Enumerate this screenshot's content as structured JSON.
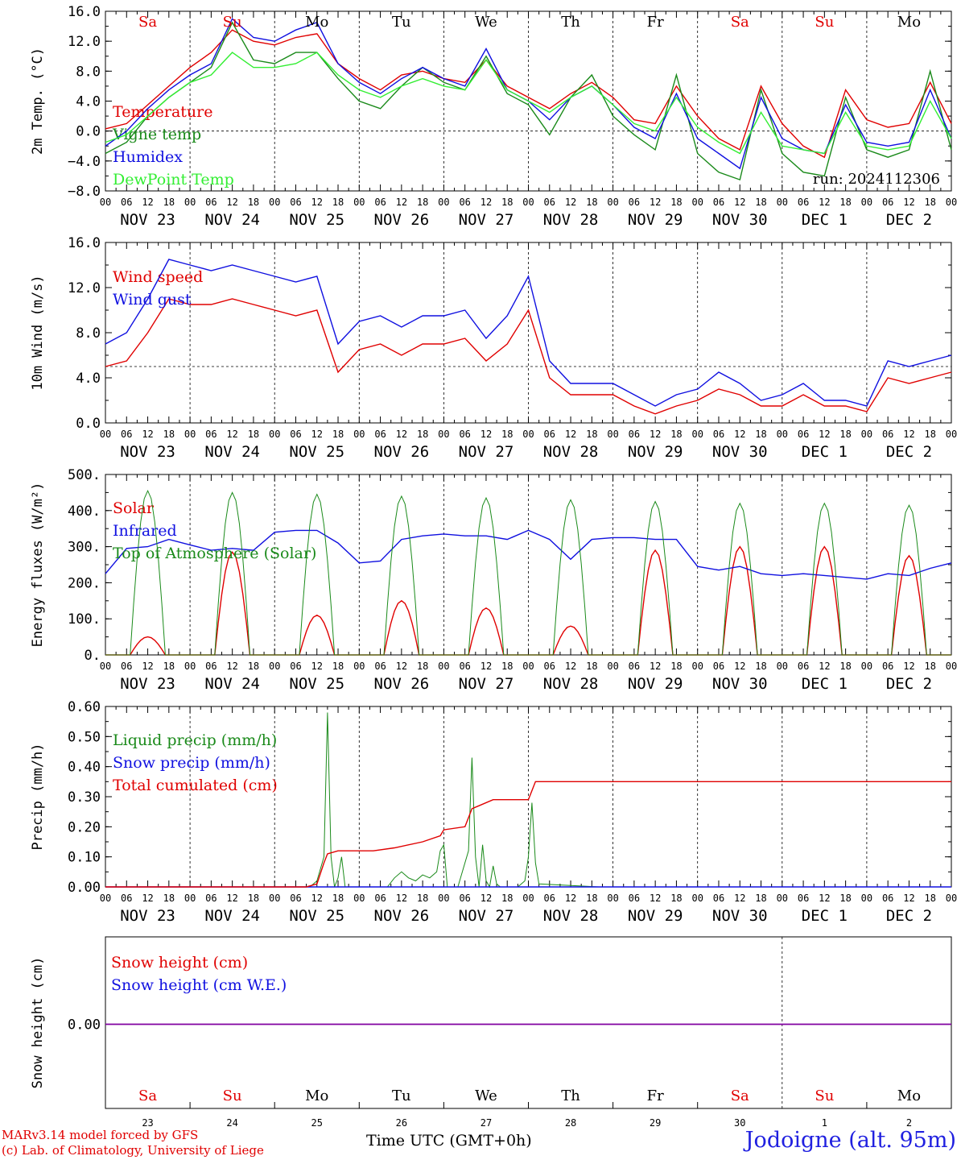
{
  "run_label": "run: 2024112306",
  "footer": {
    "model": "MARv3.14 model forced by GFS",
    "credit": "(c) Lab. of Climatology, University of Liege",
    "time_axis": "Time UTC (GMT+0h)",
    "station": "Jodoigne (alt. 95m)"
  },
  "days": [
    {
      "abbr": "Sa",
      "weekend": true,
      "date": "NOV 23",
      "num": "23"
    },
    {
      "abbr": "Su",
      "weekend": true,
      "date": "NOV 24",
      "num": "24"
    },
    {
      "abbr": "Mo",
      "weekend": false,
      "date": "NOV 25",
      "num": "25"
    },
    {
      "abbr": "Tu",
      "weekend": false,
      "date": "NOV 26",
      "num": "26"
    },
    {
      "abbr": "We",
      "weekend": false,
      "date": "NOV 27",
      "num": "27"
    },
    {
      "abbr": "Th",
      "weekend": false,
      "date": "NOV 28",
      "num": "28"
    },
    {
      "abbr": "Fr",
      "weekend": false,
      "date": "NOV 29",
      "num": "29"
    },
    {
      "abbr": "Sa",
      "weekend": true,
      "date": "NOV 30",
      "num": "30"
    },
    {
      "abbr": "Su",
      "weekend": true,
      "date": "DEC  1",
      "num": "1"
    },
    {
      "abbr": "Mo",
      "weekend": false,
      "date": "DEC  2",
      "num": "2"
    }
  ],
  "hour_ticks": [
    "00",
    "06",
    "12",
    "18"
  ],
  "colors": {
    "red": "#e00000",
    "green": "#1a8a1a",
    "blue": "#1010e0",
    "lightgreen": "#33ee33",
    "purple": "#8000a0",
    "dashed": "#000000"
  },
  "chart_data": [
    {
      "id": "temp",
      "type": "line",
      "ylabel": "2m Temp. (°C)",
      "ylim": [
        -8,
        16
      ],
      "yticks": [
        "16.0",
        "12.0",
        "8.0",
        "4.0",
        "0.0",
        "−4.0",
        "−8.0"
      ],
      "ytick_values": [
        16,
        12,
        8,
        4,
        0,
        -4,
        -8
      ],
      "ref_line": 0,
      "x_hours": [
        0,
        6,
        12,
        18,
        24,
        30,
        36,
        42,
        48,
        54,
        60,
        66,
        72,
        78,
        84,
        90,
        96,
        102,
        108,
        114,
        120,
        126,
        132,
        138,
        144,
        150,
        156,
        162,
        168,
        174,
        180,
        186,
        192,
        198,
        204,
        210,
        216,
        222,
        228,
        234,
        240
      ],
      "series": [
        {
          "name": "Temperature",
          "color": "red",
          "values": [
            0.3,
            1.0,
            3.5,
            6.0,
            8.5,
            10.5,
            13.5,
            12.0,
            11.5,
            12.5,
            13.0,
            9.0,
            7.0,
            5.5,
            7.5,
            8.0,
            7.0,
            6.5,
            9.5,
            6.0,
            4.5,
            3.0,
            5.0,
            6.5,
            4.5,
            1.5,
            1.0,
            6.0,
            2.0,
            -1.0,
            -2.5,
            6.0,
            1.0,
            -2.0,
            -3.5,
            5.5,
            1.5,
            0.5,
            1.0,
            6.5,
            1.0
          ]
        },
        {
          "name": "Vigne temp",
          "color": "green",
          "values": [
            -3.0,
            -1.5,
            2.0,
            4.5,
            6.5,
            8.5,
            14.5,
            9.5,
            9.0,
            10.5,
            10.5,
            7.0,
            4.0,
            3.0,
            6.0,
            8.5,
            6.5,
            5.5,
            10.0,
            5.0,
            3.5,
            -0.5,
            4.5,
            7.5,
            2.0,
            -0.5,
            -2.5,
            7.5,
            -3.0,
            -5.5,
            -6.5,
            5.5,
            -3.0,
            -5.5,
            -6.0,
            4.5,
            -2.5,
            -3.5,
            -2.5,
            8.0,
            -2.5
          ]
        },
        {
          "name": "Humidex",
          "color": "blue",
          "values": [
            -2.0,
            0.0,
            3.0,
            5.5,
            7.5,
            9.0,
            15.0,
            12.5,
            12.0,
            13.5,
            14.5,
            9.0,
            6.5,
            5.0,
            7.0,
            8.5,
            7.0,
            6.0,
            11.0,
            5.5,
            4.0,
            1.5,
            4.5,
            6.0,
            3.5,
            0.5,
            -1.0,
            5.0,
            -1.0,
            -3.0,
            -5.0,
            4.5,
            -1.0,
            -2.5,
            -3.0,
            3.5,
            -1.5,
            -2.0,
            -1.5,
            5.5,
            -1.0
          ]
        },
        {
          "name": "DewPoint Temp",
          "color": "lightgreen",
          "values": [
            -1.5,
            -0.5,
            2.0,
            4.5,
            6.5,
            7.5,
            10.5,
            8.5,
            8.5,
            9.0,
            10.5,
            7.5,
            5.5,
            4.5,
            6.0,
            7.0,
            6.0,
            5.5,
            9.5,
            5.5,
            4.0,
            2.5,
            4.5,
            6.0,
            3.5,
            1.0,
            0.0,
            4.5,
            0.5,
            -1.5,
            -3.0,
            2.5,
            -2.0,
            -2.5,
            -3.0,
            2.5,
            -2.0,
            -2.5,
            -2.0,
            4.0,
            -1.0
          ]
        }
      ]
    },
    {
      "id": "wind",
      "type": "line",
      "ylabel": "10m Wind (m/s)",
      "ylim": [
        0,
        16
      ],
      "yticks": [
        "16.0",
        "12.0",
        "8.0",
        "4.0",
        "0.0"
      ],
      "ytick_values": [
        16,
        12,
        8,
        4,
        0
      ],
      "ref_line": 5,
      "x_hours": [
        0,
        6,
        12,
        18,
        24,
        30,
        36,
        42,
        48,
        54,
        60,
        66,
        72,
        78,
        84,
        90,
        96,
        102,
        108,
        114,
        120,
        126,
        132,
        138,
        144,
        150,
        156,
        162,
        168,
        174,
        180,
        186,
        192,
        198,
        204,
        210,
        216,
        222,
        228,
        234,
        240
      ],
      "series": [
        {
          "name": "Wind speed",
          "color": "red",
          "values": [
            5.0,
            5.5,
            8.0,
            11.0,
            10.5,
            10.5,
            11.0,
            10.5,
            10.0,
            9.5,
            10.0,
            4.5,
            6.5,
            7.0,
            6.0,
            7.0,
            7.0,
            7.5,
            5.5,
            7.0,
            10.0,
            4.0,
            2.5,
            2.5,
            2.5,
            1.5,
            0.8,
            1.5,
            2.0,
            3.0,
            2.5,
            1.5,
            1.5,
            2.5,
            1.5,
            1.5,
            1.0,
            4.0,
            3.5,
            4.0,
            4.5
          ]
        },
        {
          "name": "Wind gust",
          "color": "blue",
          "values": [
            7.0,
            8.0,
            11.0,
            14.5,
            14.0,
            13.5,
            14.0,
            13.5,
            13.0,
            12.5,
            13.0,
            7.0,
            9.0,
            9.5,
            8.5,
            9.5,
            9.5,
            10.0,
            7.5,
            9.5,
            13.0,
            5.5,
            3.5,
            3.5,
            3.5,
            2.5,
            1.5,
            2.5,
            3.0,
            4.5,
            3.5,
            2.0,
            2.5,
            3.5,
            2.0,
            2.0,
            1.5,
            5.5,
            5.0,
            5.5,
            6.0
          ]
        }
      ]
    },
    {
      "id": "energy",
      "type": "line",
      "ylabel": "Energy fluxes (W/m²)",
      "ylim": [
        0,
        500
      ],
      "yticks": [
        "500.",
        "400.",
        "300.",
        "200.",
        "100.",
        "0."
      ],
      "ytick_values": [
        500,
        400,
        300,
        200,
        100,
        0
      ],
      "series": [
        {
          "name": "Solar",
          "color": "red",
          "peaks": [
            50,
            285,
            110,
            150,
            130,
            80,
            290,
            300,
            300,
            275
          ]
        },
        {
          "name": "Infrared",
          "color": "blue",
          "x_hours": [
            0,
            6,
            12,
            18,
            24,
            30,
            36,
            42,
            48,
            54,
            60,
            66,
            72,
            78,
            84,
            90,
            96,
            102,
            108,
            114,
            120,
            126,
            132,
            138,
            144,
            150,
            156,
            162,
            168,
            174,
            180,
            186,
            192,
            198,
            204,
            210,
            216,
            222,
            228,
            234,
            240
          ],
          "values": [
            225,
            295,
            300,
            320,
            305,
            290,
            295,
            290,
            340,
            345,
            345,
            310,
            255,
            260,
            320,
            330,
            335,
            330,
            330,
            320,
            345,
            320,
            265,
            320,
            325,
            325,
            320,
            320,
            245,
            235,
            245,
            225,
            220,
            225,
            220,
            215,
            210,
            225,
            220,
            240,
            255
          ]
        },
        {
          "name": "Top of Atmosphere (Solar)",
          "color": "green",
          "peaks": [
            455,
            450,
            445,
            440,
            435,
            430,
            425,
            420,
            420,
            415
          ]
        }
      ]
    },
    {
      "id": "precip",
      "type": "line",
      "ylabel": "Precip (mm/h)",
      "ylim": [
        0,
        0.6
      ],
      "yticks": [
        "0.60",
        "0.50",
        "0.40",
        "0.30",
        "0.20",
        "0.10",
        "0.00"
      ],
      "ytick_values": [
        0.6,
        0.5,
        0.4,
        0.3,
        0.2,
        0.1,
        0.0
      ],
      "series": [
        {
          "name": "Liquid precip (mm/h)",
          "color": "green",
          "points": [
            [
              0,
              0
            ],
            [
              58,
              0
            ],
            [
              60,
              0.02
            ],
            [
              62,
              0.1
            ],
            [
              63,
              0.58
            ],
            [
              64,
              0.1
            ],
            [
              65,
              0
            ],
            [
              66,
              0.03
            ],
            [
              67,
              0.1
            ],
            [
              68,
              0.0
            ],
            [
              80,
              0
            ],
            [
              82,
              0.03
            ],
            [
              84,
              0.05
            ],
            [
              86,
              0.03
            ],
            [
              88,
              0.02
            ],
            [
              90,
              0.04
            ],
            [
              92,
              0.03
            ],
            [
              94,
              0.05
            ],
            [
              95,
              0.12
            ],
            [
              96,
              0.14
            ],
            [
              97,
              0.0
            ],
            [
              100,
              0
            ],
            [
              103,
              0.12
            ],
            [
              104,
              0.43
            ],
            [
              105,
              0.1
            ],
            [
              106,
              0.0
            ],
            [
              107,
              0.14
            ],
            [
              108,
              0.02
            ],
            [
              109,
              0
            ],
            [
              110,
              0.07
            ],
            [
              111,
              0.01
            ],
            [
              112,
              0
            ],
            [
              117,
              0
            ],
            [
              119,
              0.02
            ],
            [
              120,
              0.1
            ],
            [
              121,
              0.28
            ],
            [
              122,
              0.08
            ],
            [
              123,
              0.01
            ],
            [
              140,
              0.0
            ],
            [
              240,
              0
            ]
          ]
        },
        {
          "name": "Snow precip (mm/h)",
          "color": "blue",
          "points": [
            [
              0,
              0
            ],
            [
              240,
              0
            ]
          ]
        },
        {
          "name": "Total cumulated (cm)",
          "color": "red",
          "points": [
            [
              0,
              0
            ],
            [
              57,
              0
            ],
            [
              60,
              0.01
            ],
            [
              62,
              0.08
            ],
            [
              63,
              0.11
            ],
            [
              66,
              0.12
            ],
            [
              76,
              0.12
            ],
            [
              82,
              0.13
            ],
            [
              90,
              0.15
            ],
            [
              95,
              0.17
            ],
            [
              96,
              0.19
            ],
            [
              102,
              0.2
            ],
            [
              104,
              0.26
            ],
            [
              106,
              0.27
            ],
            [
              110,
              0.29
            ],
            [
              120,
              0.29
            ],
            [
              121,
              0.32
            ],
            [
              122,
              0.35
            ],
            [
              240,
              0.35
            ]
          ]
        }
      ]
    },
    {
      "id": "snow",
      "type": "line",
      "ylabel": "Snow height (cm)",
      "yticks": [
        "0.00"
      ],
      "series": [
        {
          "name": "Snow height (cm)",
          "color": "red",
          "values": [
            0,
            0
          ]
        },
        {
          "name": "Snow height (cm W.E.)",
          "color": "blue",
          "values": [
            0,
            0
          ]
        }
      ]
    }
  ]
}
